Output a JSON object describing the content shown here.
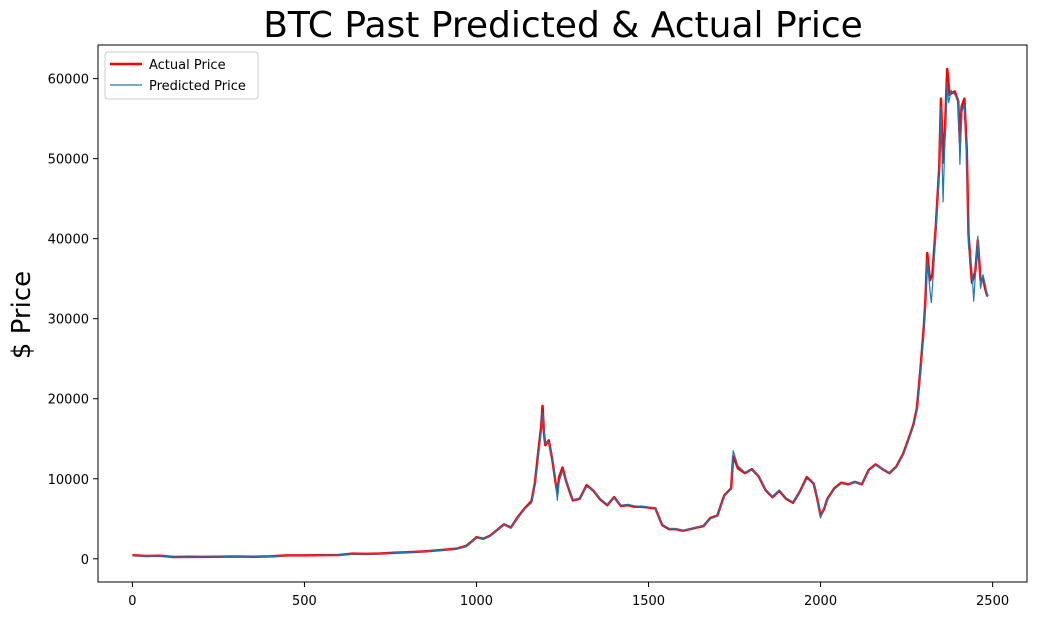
{
  "chart_data": {
    "type": "line",
    "title": "BTC Past Predicted & Actual Price",
    "xlabel": "",
    "ylabel": "$ Price",
    "xlim": [
      -100,
      2600
    ],
    "ylim": [
      -2900,
      64200
    ],
    "xticks": [
      0,
      500,
      1000,
      1500,
      2000,
      2500
    ],
    "yticks": [
      0,
      10000,
      20000,
      30000,
      40000,
      50000,
      60000
    ],
    "legend_position": "top-left",
    "series": [
      {
        "name": "Actual Price",
        "color": "#ff0000",
        "points": [
          [
            0,
            450
          ],
          [
            40,
            350
          ],
          [
            80,
            380
          ],
          [
            120,
            230
          ],
          [
            160,
            260
          ],
          [
            200,
            240
          ],
          [
            250,
            260
          ],
          [
            300,
            280
          ],
          [
            350,
            250
          ],
          [
            400,
            300
          ],
          [
            450,
            430
          ],
          [
            500,
            420
          ],
          [
            550,
            460
          ],
          [
            600,
            480
          ],
          [
            640,
            650
          ],
          [
            680,
            620
          ],
          [
            720,
            660
          ],
          [
            760,
            750
          ],
          [
            800,
            820
          ],
          [
            850,
            920
          ],
          [
            900,
            1100
          ],
          [
            940,
            1250
          ],
          [
            970,
            1600
          ],
          [
            990,
            2300
          ],
          [
            1000,
            2700
          ],
          [
            1020,
            2500
          ],
          [
            1040,
            2900
          ],
          [
            1060,
            3600
          ],
          [
            1080,
            4300
          ],
          [
            1100,
            3900
          ],
          [
            1120,
            5200
          ],
          [
            1140,
            6300
          ],
          [
            1160,
            7200
          ],
          [
            1170,
            9500
          ],
          [
            1180,
            13500
          ],
          [
            1188,
            16500
          ],
          [
            1192,
            19100
          ],
          [
            1196,
            15800
          ],
          [
            1200,
            14200
          ],
          [
            1210,
            14800
          ],
          [
            1220,
            12500
          ],
          [
            1230,
            9500
          ],
          [
            1235,
            8200
          ],
          [
            1240,
            10200
          ],
          [
            1250,
            11400
          ],
          [
            1260,
            9800
          ],
          [
            1270,
            8500
          ],
          [
            1280,
            7300
          ],
          [
            1300,
            7500
          ],
          [
            1320,
            9200
          ],
          [
            1340,
            8500
          ],
          [
            1360,
            7400
          ],
          [
            1380,
            6700
          ],
          [
            1400,
            7700
          ],
          [
            1420,
            6600
          ],
          [
            1440,
            6700
          ],
          [
            1460,
            6500
          ],
          [
            1480,
            6500
          ],
          [
            1500,
            6400
          ],
          [
            1520,
            6300
          ],
          [
            1540,
            4200
          ],
          [
            1560,
            3700
          ],
          [
            1580,
            3700
          ],
          [
            1600,
            3500
          ],
          [
            1620,
            3700
          ],
          [
            1640,
            3900
          ],
          [
            1660,
            4100
          ],
          [
            1680,
            5100
          ],
          [
            1700,
            5400
          ],
          [
            1720,
            7900
          ],
          [
            1740,
            8800
          ],
          [
            1746,
            12800
          ],
          [
            1760,
            11300
          ],
          [
            1780,
            10700
          ],
          [
            1800,
            11200
          ],
          [
            1820,
            10300
          ],
          [
            1840,
            8600
          ],
          [
            1860,
            7700
          ],
          [
            1880,
            8500
          ],
          [
            1900,
            7500
          ],
          [
            1920,
            7000
          ],
          [
            1940,
            8400
          ],
          [
            1960,
            10200
          ],
          [
            1980,
            9400
          ],
          [
            1990,
            7600
          ],
          [
            2000,
            5400
          ],
          [
            2010,
            6200
          ],
          [
            2020,
            7500
          ],
          [
            2040,
            8800
          ],
          [
            2060,
            9500
          ],
          [
            2080,
            9300
          ],
          [
            2100,
            9600
          ],
          [
            2120,
            9300
          ],
          [
            2140,
            11100
          ],
          [
            2160,
            11800
          ],
          [
            2180,
            11200
          ],
          [
            2200,
            10700
          ],
          [
            2220,
            11500
          ],
          [
            2240,
            13100
          ],
          [
            2260,
            15500
          ],
          [
            2270,
            16800
          ],
          [
            2280,
            18800
          ],
          [
            2290,
            23500
          ],
          [
            2300,
            28900
          ],
          [
            2305,
            32500
          ],
          [
            2310,
            38200
          ],
          [
            2318,
            34800
          ],
          [
            2325,
            35500
          ],
          [
            2335,
            41500
          ],
          [
            2345,
            49000
          ],
          [
            2350,
            57500
          ],
          [
            2356,
            49500
          ],
          [
            2362,
            54000
          ],
          [
            2368,
            61200
          ],
          [
            2375,
            58000
          ],
          [
            2390,
            58400
          ],
          [
            2400,
            57200
          ],
          [
            2405,
            52000
          ],
          [
            2410,
            56500
          ],
          [
            2418,
            57500
          ],
          [
            2425,
            51000
          ],
          [
            2430,
            40500
          ],
          [
            2440,
            34500
          ],
          [
            2450,
            36000
          ],
          [
            2457,
            39800
          ],
          [
            2465,
            34800
          ],
          [
            2472,
            35000
          ],
          [
            2480,
            33500
          ],
          [
            2485,
            32800
          ]
        ]
      },
      {
        "name": "Predicted Price",
        "color": "#1f77b4",
        "points": [
          [
            0,
            400
          ],
          [
            40,
            330
          ],
          [
            80,
            360
          ],
          [
            120,
            220
          ],
          [
            160,
            250
          ],
          [
            200,
            230
          ],
          [
            250,
            250
          ],
          [
            300,
            270
          ],
          [
            350,
            240
          ],
          [
            400,
            290
          ],
          [
            450,
            420
          ],
          [
            500,
            410
          ],
          [
            550,
            450
          ],
          [
            600,
            470
          ],
          [
            640,
            630
          ],
          [
            680,
            610
          ],
          [
            720,
            650
          ],
          [
            760,
            740
          ],
          [
            800,
            810
          ],
          [
            850,
            910
          ],
          [
            900,
            1080
          ],
          [
            940,
            1230
          ],
          [
            970,
            1550
          ],
          [
            990,
            2250
          ],
          [
            1000,
            2650
          ],
          [
            1020,
            2450
          ],
          [
            1040,
            2850
          ],
          [
            1060,
            3550
          ],
          [
            1080,
            4250
          ],
          [
            1100,
            3850
          ],
          [
            1120,
            5100
          ],
          [
            1140,
            6200
          ],
          [
            1160,
            7000
          ],
          [
            1170,
            9200
          ],
          [
            1180,
            12800
          ],
          [
            1188,
            15900
          ],
          [
            1192,
            18200
          ],
          [
            1196,
            16200
          ],
          [
            1200,
            14400
          ],
          [
            1210,
            14600
          ],
          [
            1220,
            12800
          ],
          [
            1230,
            9800
          ],
          [
            1235,
            7300
          ],
          [
            1240,
            9600
          ],
          [
            1250,
            11000
          ],
          [
            1260,
            10000
          ],
          [
            1270,
            8700
          ],
          [
            1280,
            7400
          ],
          [
            1300,
            7500
          ],
          [
            1320,
            9000
          ],
          [
            1340,
            8600
          ],
          [
            1360,
            7500
          ],
          [
            1380,
            6800
          ],
          [
            1400,
            7600
          ],
          [
            1420,
            6700
          ],
          [
            1440,
            6800
          ],
          [
            1460,
            6600
          ],
          [
            1480,
            6550
          ],
          [
            1500,
            6450
          ],
          [
            1520,
            6350
          ],
          [
            1540,
            4300
          ],
          [
            1560,
            3800
          ],
          [
            1580,
            3750
          ],
          [
            1600,
            3550
          ],
          [
            1620,
            3750
          ],
          [
            1640,
            3950
          ],
          [
            1660,
            4150
          ],
          [
            1680,
            5000
          ],
          [
            1700,
            5350
          ],
          [
            1720,
            7800
          ],
          [
            1740,
            8700
          ],
          [
            1746,
            13500
          ],
          [
            1760,
            11600
          ],
          [
            1780,
            10800
          ],
          [
            1800,
            11100
          ],
          [
            1820,
            10400
          ],
          [
            1840,
            8700
          ],
          [
            1860,
            7800
          ],
          [
            1880,
            8600
          ],
          [
            1900,
            7600
          ],
          [
            1920,
            7100
          ],
          [
            1940,
            8300
          ],
          [
            1960,
            10000
          ],
          [
            1980,
            9500
          ],
          [
            1990,
            7800
          ],
          [
            2000,
            5100
          ],
          [
            2010,
            6300
          ],
          [
            2020,
            7400
          ],
          [
            2040,
            8700
          ],
          [
            2060,
            9400
          ],
          [
            2080,
            9350
          ],
          [
            2100,
            9550
          ],
          [
            2120,
            9350
          ],
          [
            2140,
            11000
          ],
          [
            2160,
            11700
          ],
          [
            2180,
            11250
          ],
          [
            2200,
            10750
          ],
          [
            2220,
            11400
          ],
          [
            2240,
            13000
          ],
          [
            2260,
            15300
          ],
          [
            2270,
            16600
          ],
          [
            2280,
            18500
          ],
          [
            2290,
            23000
          ],
          [
            2300,
            28300
          ],
          [
            2305,
            32000
          ],
          [
            2310,
            37400
          ],
          [
            2318,
            33500
          ],
          [
            2322,
            32000
          ],
          [
            2328,
            35800
          ],
          [
            2335,
            41000
          ],
          [
            2345,
            48500
          ],
          [
            2350,
            56500
          ],
          [
            2356,
            44600
          ],
          [
            2362,
            53000
          ],
          [
            2368,
            59500
          ],
          [
            2372,
            57000
          ],
          [
            2380,
            58500
          ],
          [
            2390,
            58000
          ],
          [
            2400,
            57500
          ],
          [
            2405,
            49300
          ],
          [
            2410,
            55800
          ],
          [
            2418,
            56800
          ],
          [
            2425,
            50300
          ],
          [
            2430,
            39000
          ],
          [
            2440,
            36000
          ],
          [
            2445,
            32200
          ],
          [
            2450,
            35500
          ],
          [
            2457,
            40300
          ],
          [
            2465,
            33800
          ],
          [
            2472,
            35500
          ],
          [
            2480,
            34000
          ],
          [
            2485,
            32700
          ]
        ]
      }
    ]
  }
}
